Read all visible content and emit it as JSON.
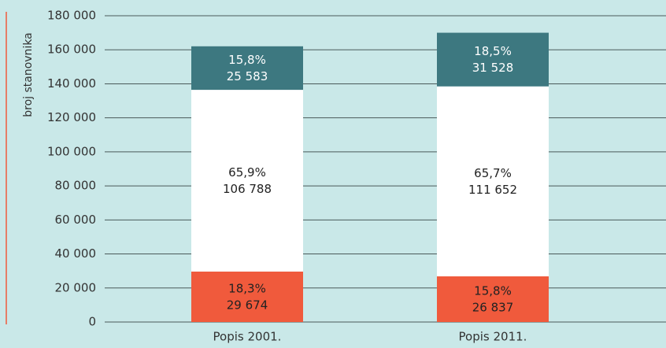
{
  "chart_data": {
    "type": "stacked-bar",
    "ylabel": "broj stanovnika",
    "categories": [
      "Popis 2001.",
      "Popis 2011."
    ],
    "series": [
      {
        "color": "#f05a3c",
        "text_color": "#222222",
        "values": [
          29674,
          26837
        ],
        "value_labels": [
          "29 674",
          "26 837"
        ],
        "percent_labels": [
          "18,3%",
          "15,8%"
        ]
      },
      {
        "color": "#ffffff",
        "text_color": "#222222",
        "values": [
          106788,
          111652
        ],
        "value_labels": [
          "106 788",
          "111 652"
        ],
        "percent_labels": [
          "65,9%",
          "65,7%"
        ]
      },
      {
        "color": "#3d7880",
        "text_color": "#ffffff",
        "values": [
          25583,
          31528
        ],
        "value_labels": [
          "25 583",
          "31 528"
        ],
        "percent_labels": [
          "15,8%",
          "18,5%"
        ]
      }
    ],
    "ylim": [
      0,
      180000
    ],
    "yticks": [
      0,
      {
        "value": 20000,
        "label": "20 000"
      },
      {
        "value": 40000,
        "label": "40 000"
      },
      {
        "value": 60000,
        "label": "60 000"
      },
      {
        "value": 80000,
        "label": "80 000"
      },
      {
        "value": 100000,
        "label": "100 000"
      },
      {
        "value": 120000,
        "label": "120 000"
      },
      {
        "value": 140000,
        "label": "140 000"
      },
      {
        "value": 160000,
        "label": "160 000"
      },
      {
        "value": 180000,
        "label": "180 000"
      }
    ],
    "grid": true
  }
}
